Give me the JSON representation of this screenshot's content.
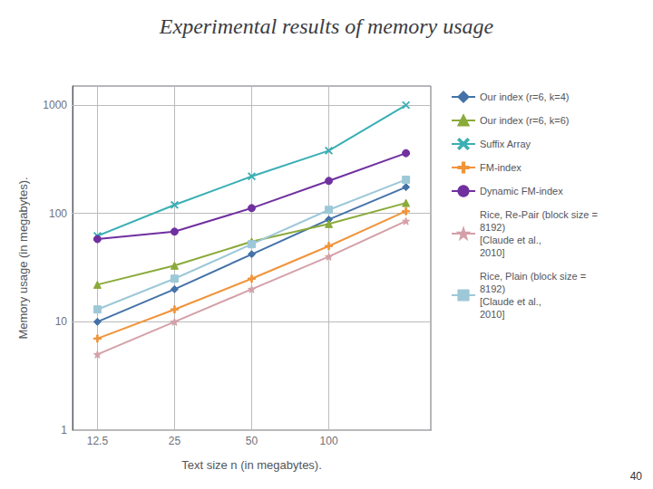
{
  "chart_data": {
    "type": "line",
    "title": "Experimental results of memory usage",
    "x_label": "Text size n (in megabytes).",
    "y_label": "Memory usage (in megabytes).",
    "x": [
      12.5,
      25,
      50,
      100,
      200
    ],
    "series": [
      {
        "name": "Our index (r=6, k=4)",
        "color": "#4472a8",
        "marker": "diamond",
        "values": [
          10,
          20,
          42,
          88,
          175
        ]
      },
      {
        "name": "Our index (r=6, k=6)",
        "color": "#8aaa3a",
        "marker": "triangle",
        "values": [
          22,
          33,
          55,
          80,
          125
        ]
      },
      {
        "name": "Suffix Array",
        "color": "#3aafb5",
        "marker": "x",
        "values": [
          62,
          120,
          220,
          380,
          1000
        ]
      },
      {
        "name": "FM-index",
        "color": "#f0943a",
        "marker": "plus",
        "values": [
          7,
          13,
          25,
          50,
          105
        ]
      },
      {
        "name": "Dynamic FM-index",
        "color": "#7030a0",
        "marker": "circle",
        "values": [
          58,
          68,
          112,
          200,
          360
        ]
      },
      {
        "name": "Rice, Re-Pair (block size =\n8192)\n[Claude et al.,\n2010]",
        "color": "#d4a0a8",
        "marker": "star",
        "values": [
          5,
          10,
          20,
          40,
          85
        ]
      },
      {
        "name": "Rice, Plain (block size =\n8192)\n[Claude et al.,\n2010]",
        "color": "#9dc8d8",
        "marker": "square",
        "values": [
          13,
          25,
          52,
          108,
          205
        ]
      }
    ],
    "xlim": [
      10,
      250
    ],
    "ylim": [
      1,
      1500
    ],
    "xticks": [
      12.5,
      25,
      50,
      100
    ],
    "yticks": [
      1,
      10,
      100,
      1000
    ],
    "log": true,
    "grid": true,
    "legend": "right",
    "annotations": [
      "40"
    ]
  }
}
